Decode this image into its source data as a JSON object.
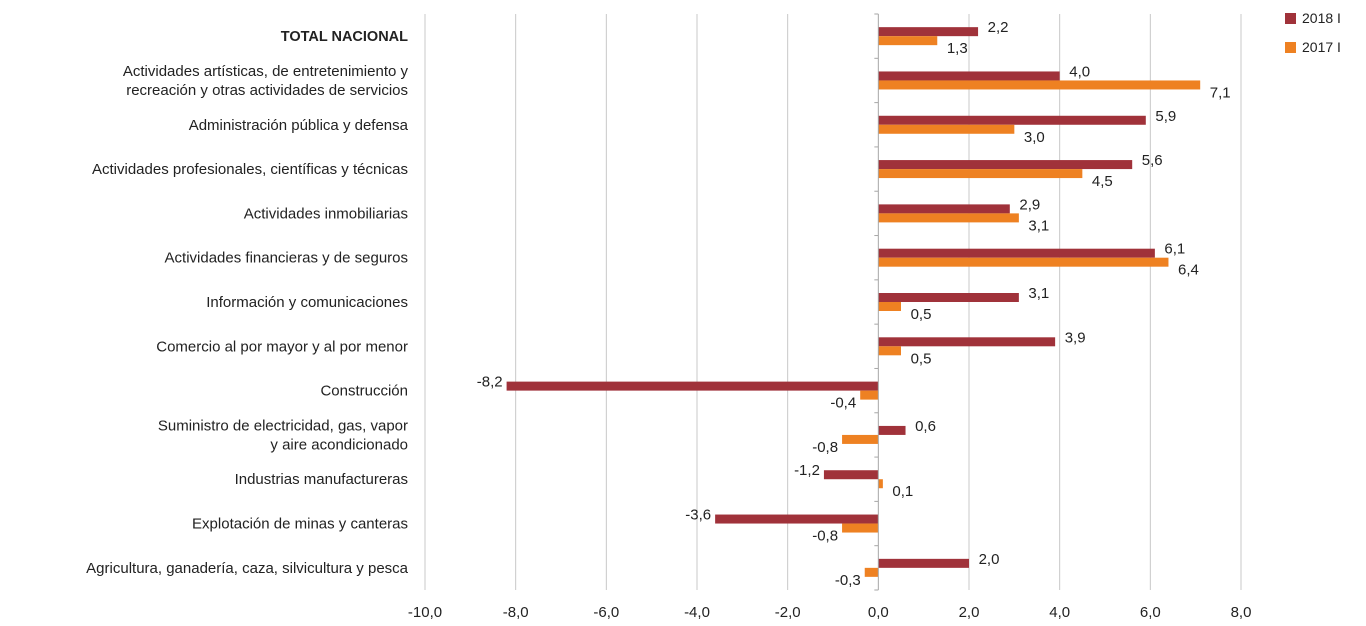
{
  "chart_data": {
    "type": "bar",
    "orientation": "horizontal",
    "title": "",
    "xlabel": "",
    "ylabel": "",
    "xlim": [
      -10,
      8
    ],
    "x_ticks": [
      "-10,0",
      "-8,0",
      "-6,0",
      "-4,0",
      "-2,0",
      "0,0",
      "2,0",
      "4,0",
      "6,0",
      "8,0"
    ],
    "grid": "vertical",
    "legend_position": "top-right",
    "categories": [
      "TOTAL NACIONAL",
      [
        "Actividades artísticas, de entretenimiento y",
        "recreación y otras actividades de servicios"
      ],
      "Administración pública y defensa",
      "Actividades profesionales, científicas y técnicas",
      "Actividades inmobiliarias",
      "Actividades financieras y de seguros",
      "Información y comunicaciones",
      "Comercio al por mayor y al por menor",
      "Construcción",
      [
        "Suministro de electricidad, gas, vapor",
        "y aire acondicionado"
      ],
      "Industrias manufactureras",
      "Explotación de minas y canteras",
      "Agricultura, ganadería, caza, silvicultura y pesca"
    ],
    "bold_categories": [
      0
    ],
    "series": [
      {
        "name": "2018 I",
        "color": "#A0323A",
        "values": [
          2.2,
          4.0,
          5.9,
          5.6,
          2.9,
          6.1,
          3.1,
          3.9,
          -8.2,
          0.6,
          -1.2,
          -3.6,
          2.0
        ],
        "labels": [
          "2,2",
          "4,0",
          "5,9",
          "5,6",
          "2,9",
          "6,1",
          "3,1",
          "3,9",
          "-8,2",
          "0,6",
          "-1,2",
          "-3,6",
          "2,0"
        ]
      },
      {
        "name": "2017 I",
        "color": "#EE8122",
        "values": [
          1.3,
          7.1,
          3.0,
          4.5,
          3.1,
          6.4,
          0.5,
          0.5,
          -0.4,
          -0.8,
          0.1,
          -0.8,
          -0.3
        ],
        "labels": [
          "1,3",
          "7,1",
          "3,0",
          "4,5",
          "3,1",
          "6,4",
          "0,5",
          "0,5",
          "-0,4",
          "-0,8",
          "0,1",
          "-0,8",
          "-0,3"
        ]
      }
    ]
  }
}
